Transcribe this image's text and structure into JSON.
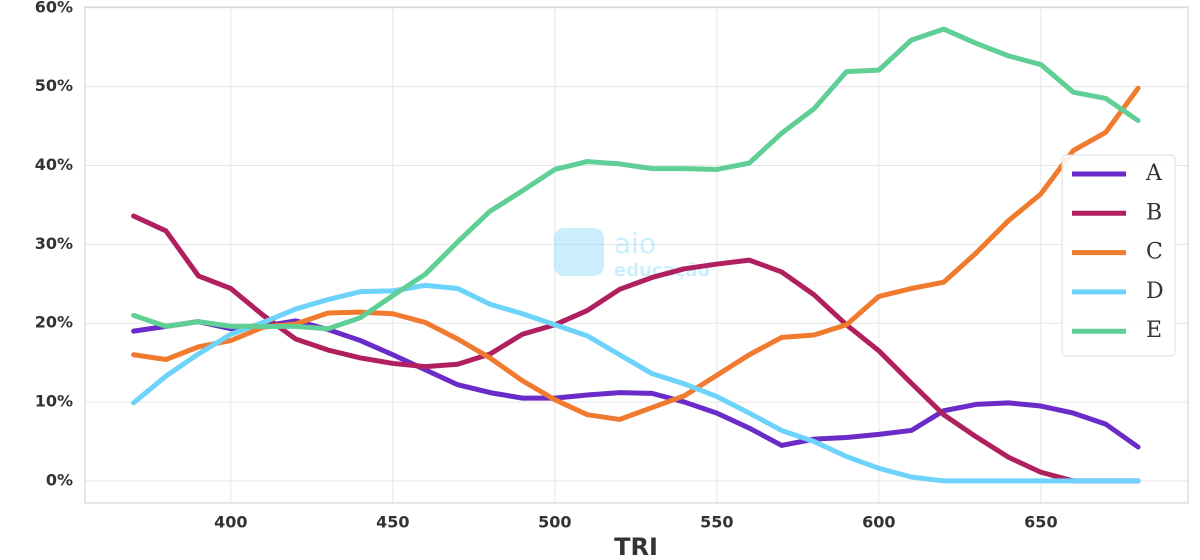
{
  "chart_data": {
    "type": "line",
    "x_label": "TRI",
    "watermark": [
      "aio",
      "educação"
    ],
    "x": [
      370,
      380,
      390,
      400,
      410,
      420,
      430,
      440,
      450,
      460,
      470,
      480,
      490,
      500,
      510,
      520,
      530,
      540,
      550,
      560,
      570,
      580,
      590,
      600,
      610,
      620,
      630,
      640,
      650,
      660,
      670,
      680
    ],
    "series": [
      {
        "name": "A",
        "color": "#6a2bc9",
        "values": [
          19,
          19.6,
          20.2,
          19.3,
          19.6,
          20.3,
          19.2,
          17.8,
          16,
          14.1,
          12.2,
          11.2,
          10.5,
          10.5,
          10.9,
          11.2,
          11.1,
          10,
          8.6,
          6.7,
          4.5,
          5.3,
          5.5,
          5.9,
          6.4,
          8.9,
          9.7,
          9.9,
          9.5,
          8.6,
          7.2,
          4.3
        ]
      },
      {
        "name": "B",
        "color": "#b0205f",
        "values": [
          33.6,
          31.7,
          26,
          24.4,
          21,
          18,
          16.6,
          15.6,
          14.9,
          14.5,
          14.8,
          16.1,
          18.6,
          19.8,
          21.6,
          24.3,
          25.8,
          26.9,
          27.5,
          28,
          26.5,
          23.6,
          19.8,
          16.5,
          12.4,
          8.4,
          5.6,
          3,
          1.1,
          0,
          0,
          0
        ]
      },
      {
        "name": "C",
        "color": "#f07b2e",
        "values": [
          16,
          15.4,
          17,
          17.8,
          19.5,
          19.9,
          21.3,
          21.4,
          21.2,
          20.1,
          18,
          15.6,
          12.7,
          10.3,
          8.4,
          7.8,
          9.3,
          10.8,
          13.4,
          16,
          18.2,
          18.5,
          19.8,
          23.4,
          24.4,
          25.2,
          28.9,
          33,
          36.4,
          41.9,
          44.2,
          49.8
        ]
      },
      {
        "name": "D",
        "color": "#6dd3fb",
        "values": [
          9.9,
          13.3,
          16.1,
          18.6,
          20.1,
          21.8,
          23,
          24,
          24.1,
          24.8,
          24.4,
          22.4,
          21.2,
          19.8,
          18.4,
          16,
          13.6,
          12.3,
          10.7,
          8.6,
          6.4,
          5,
          3.1,
          1.6,
          0.5,
          0,
          0,
          0,
          0,
          0,
          0,
          0
        ]
      },
      {
        "name": "E",
        "color": "#5fcf96",
        "values": [
          21,
          19.6,
          20.2,
          19.6,
          19.6,
          19.6,
          19.3,
          20.7,
          23.5,
          26.2,
          30.3,
          34.2,
          36.8,
          39.5,
          40.5,
          40.2,
          39.6,
          39.6,
          39.5,
          40.3,
          44.1,
          47.2,
          51.9,
          52.1,
          55.9,
          57.3,
          55.5,
          53.9,
          52.8,
          49.3,
          48.5,
          45.7
        ]
      }
    ],
    "xlim": [
      355,
      695.4
    ],
    "ylim": [
      -2.8,
      60.1
    ],
    "xticks": [
      400,
      450,
      500,
      550,
      600,
      650
    ],
    "yticks": [
      {
        "value": 0,
        "label": "0%"
      },
      {
        "value": 10,
        "label": "10%"
      },
      {
        "value": 20,
        "label": "20%"
      },
      {
        "value": 30,
        "label": "30%"
      },
      {
        "value": 40,
        "label": "40%"
      },
      {
        "value": 50,
        "label": "50%"
      },
      {
        "value": 60,
        "label": "60%"
      }
    ],
    "grid": true,
    "legend": "right"
  }
}
